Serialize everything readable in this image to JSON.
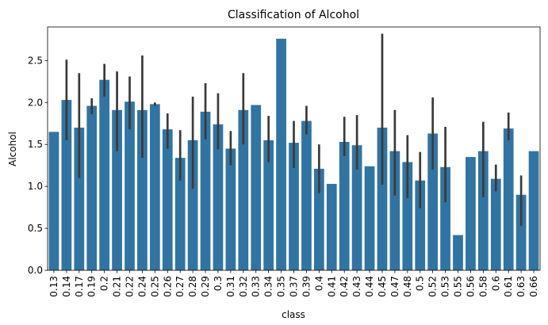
{
  "chart_data": {
    "type": "bar",
    "title": "Classification of Alcohol",
    "xlabel": "class",
    "ylabel": "Alcohol",
    "ylim": [
      0,
      2.9
    ],
    "yticks": [
      "0.0",
      "0.5",
      "1.0",
      "1.5",
      "2.0",
      "2.5"
    ],
    "grid": false,
    "color": "#3274a1",
    "errorbar_color": "#3a3a3a",
    "categories": [
      "0.13",
      "0.14",
      "0.17",
      "0.19",
      "0.2",
      "0.21",
      "0.22",
      "0.24",
      "0.25",
      "0.26",
      "0.27",
      "0.28",
      "0.29",
      "0.3",
      "0.31",
      "0.32",
      "0.33",
      "0.34",
      "0.35",
      "0.37",
      "0.39",
      "0.4",
      "0.41",
      "0.42",
      "0.43",
      "0.44",
      "0.45",
      "0.47",
      "0.48",
      "0.5",
      "0.52",
      "0.53",
      "0.55",
      "0.56",
      "0.58",
      "0.6",
      "0.61",
      "0.63",
      "0.66"
    ],
    "values": [
      1.65,
      2.03,
      1.7,
      1.96,
      2.27,
      1.91,
      2.01,
      1.91,
      1.98,
      1.68,
      1.34,
      1.55,
      1.89,
      1.74,
      1.45,
      1.91,
      1.97,
      1.55,
      2.76,
      1.52,
      1.78,
      1.21,
      1.03,
      1.53,
      1.49,
      1.24,
      1.7,
      1.42,
      1.29,
      1.07,
      1.63,
      1.23,
      0.42,
      1.35,
      1.42,
      1.09,
      1.69,
      0.9,
      1.42
    ],
    "err_low": [
      null,
      1.55,
      1.1,
      1.86,
      2.07,
      1.42,
      1.68,
      1.34,
      1.96,
      1.45,
      1.07,
      0.97,
      1.56,
      1.44,
      1.25,
      1.5,
      null,
      1.29,
      null,
      1.22,
      1.62,
      0.92,
      null,
      1.36,
      1.2,
      null,
      1.02,
      0.89,
      0.86,
      0.74,
      1.2,
      0.81,
      null,
      null,
      0.87,
      0.94,
      1.55,
      0.53,
      null
    ],
    "err_high": [
      null,
      2.51,
      2.35,
      2.05,
      2.46,
      2.37,
      2.31,
      2.56,
      2.0,
      1.87,
      1.67,
      2.07,
      2.23,
      2.11,
      1.66,
      2.35,
      null,
      1.84,
      null,
      1.78,
      1.96,
      1.5,
      null,
      1.83,
      1.85,
      null,
      2.82,
      1.91,
      1.61,
      1.41,
      2.06,
      1.71,
      null,
      null,
      1.77,
      1.26,
      1.88,
      1.13,
      null
    ]
  }
}
